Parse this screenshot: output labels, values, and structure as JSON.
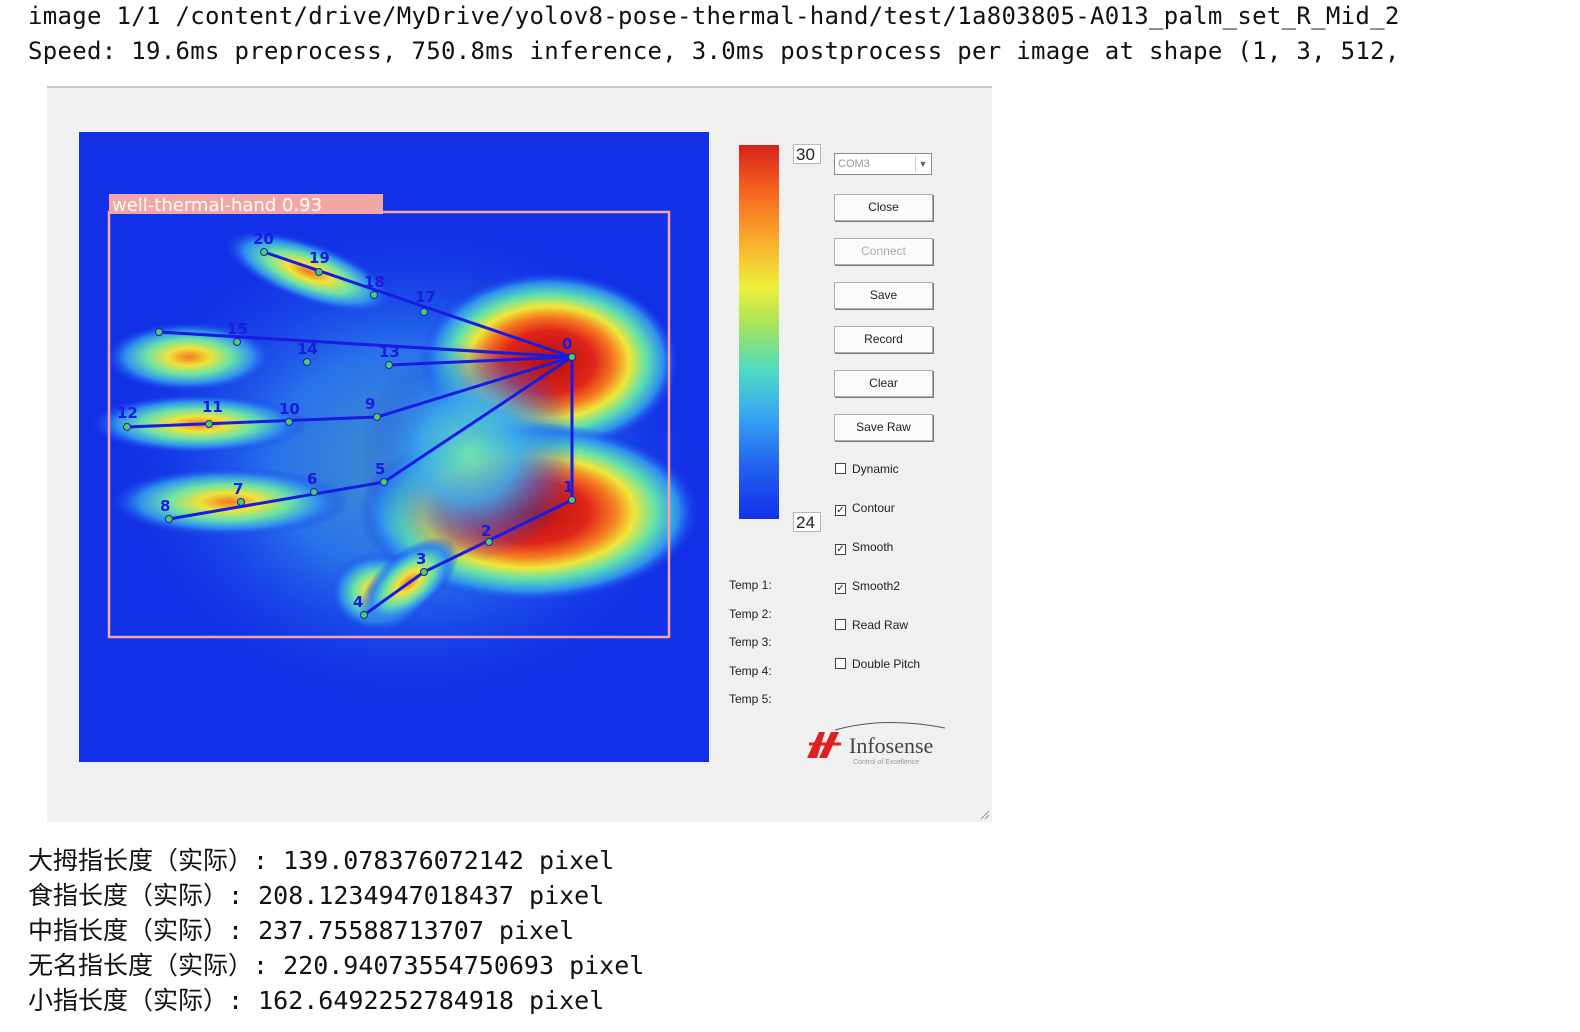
{
  "console": {
    "image_line": "image 1/1 /content/drive/MyDrive/yolov8-pose-thermal-hand/test/1a803805-A013_palm_set_R_Mid_2",
    "speed_line": "Speed: 19.6ms preprocess, 750.8ms inference, 3.0ms postprocess per image at shape (1, 3, 512,"
  },
  "detection": {
    "label": "well-thermal-hand 0.93",
    "box_color": "#f4a6a6",
    "skeleton_color": "#1a1ae0",
    "keypoint_labels": [
      "0",
      "1",
      "2",
      "3",
      "4",
      "5",
      "6",
      "7",
      "8",
      "9",
      "10",
      "11",
      "12",
      "13",
      "14",
      "15",
      "17",
      "18",
      "19",
      "20"
    ]
  },
  "app": {
    "scale_max": "30",
    "scale_min": "24",
    "port": "COM3",
    "buttons": {
      "close": "Close",
      "connect": "Connect",
      "save": "Save",
      "record": "Record",
      "clear": "Clear",
      "save_raw": "Save Raw"
    },
    "checkboxes": [
      {
        "label": "Dynamic",
        "checked": false
      },
      {
        "label": "Contour",
        "checked": true
      },
      {
        "label": "Smooth",
        "checked": true
      },
      {
        "label": "Smooth2",
        "checked": true
      },
      {
        "label": "Read Raw",
        "checked": false
      },
      {
        "label": "Double Pitch",
        "checked": false
      }
    ],
    "temps": [
      "Temp 1:",
      "Temp 2:",
      "Temp 3:",
      "Temp 4:",
      "Temp 5:"
    ],
    "logo_name": "Infosense",
    "logo_tagline": "Control of Excellence"
  },
  "results": [
    "大拇指长度（实际）: 139.078376072142 pixel",
    "食指长度（实际）: 208.1234947018437 pixel",
    "中指长度（实际）: 237.75588713707 pixel",
    "无名指长度（实际）: 220.94073554750693 pixel",
    "小指长度（实际）: 162.6492252784918 pixel"
  ]
}
